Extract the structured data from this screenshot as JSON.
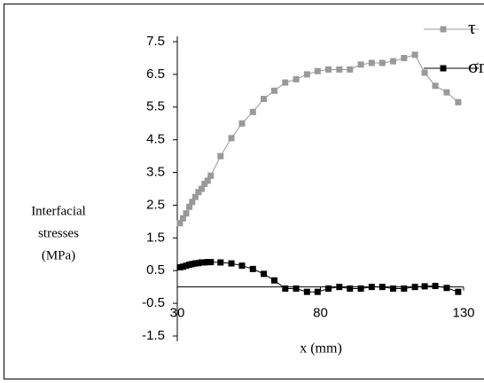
{
  "chart_data": {
    "type": "line",
    "y_label": [
      "Interfacial",
      "stresses",
      "(MPa)"
    ],
    "x_label": "x (mm)",
    "x": [
      30.9,
      32.0,
      33.1,
      34.2,
      35.2,
      36.3,
      37.4,
      38.5,
      39.5,
      40.6,
      41.7,
      45.1,
      48.9,
      52.6,
      56.4,
      60.2,
      63.9,
      67.7,
      71.5,
      75.3,
      79.0,
      82.8,
      86.6,
      90.3,
      94.1,
      97.9,
      101.6,
      105.4,
      109.2,
      113.0,
      116.4,
      120.1,
      124.1,
      128.1
    ],
    "series": [
      {
        "name": "τ",
        "color": "#999999",
        "values": [
          1.95,
          2.1,
          2.25,
          2.45,
          2.6,
          2.75,
          2.9,
          3.0,
          3.15,
          3.25,
          3.4,
          4.0,
          4.55,
          5.0,
          5.35,
          5.75,
          6.0,
          6.25,
          6.35,
          6.5,
          6.6,
          6.65,
          6.65,
          6.65,
          6.8,
          6.85,
          6.85,
          6.9,
          7.0,
          7.1,
          6.55,
          6.15,
          5.95,
          5.65
        ]
      },
      {
        "name": "σn",
        "color": "#000000",
        "values": [
          0.6,
          0.62,
          0.65,
          0.68,
          0.7,
          0.72,
          0.73,
          0.75,
          0.75,
          0.76,
          0.76,
          0.75,
          0.72,
          0.65,
          0.55,
          0.4,
          0.2,
          -0.05,
          -0.05,
          -0.15,
          -0.15,
          -0.05,
          0.0,
          -0.05,
          -0.05,
          0.0,
          0.0,
          -0.05,
          -0.05,
          0.0,
          0.02,
          0.03,
          -0.03,
          -0.15
        ]
      }
    ],
    "xlim": [
      30,
      130
    ],
    "xticks": [
      30,
      80,
      130
    ],
    "ylim": [
      -1.5,
      7.5
    ],
    "yticks": [
      -1.5,
      -0.5,
      0.5,
      1.5,
      2.5,
      3.5,
      4.5,
      5.5,
      6.5,
      7.5
    ],
    "legend": "top-right"
  }
}
